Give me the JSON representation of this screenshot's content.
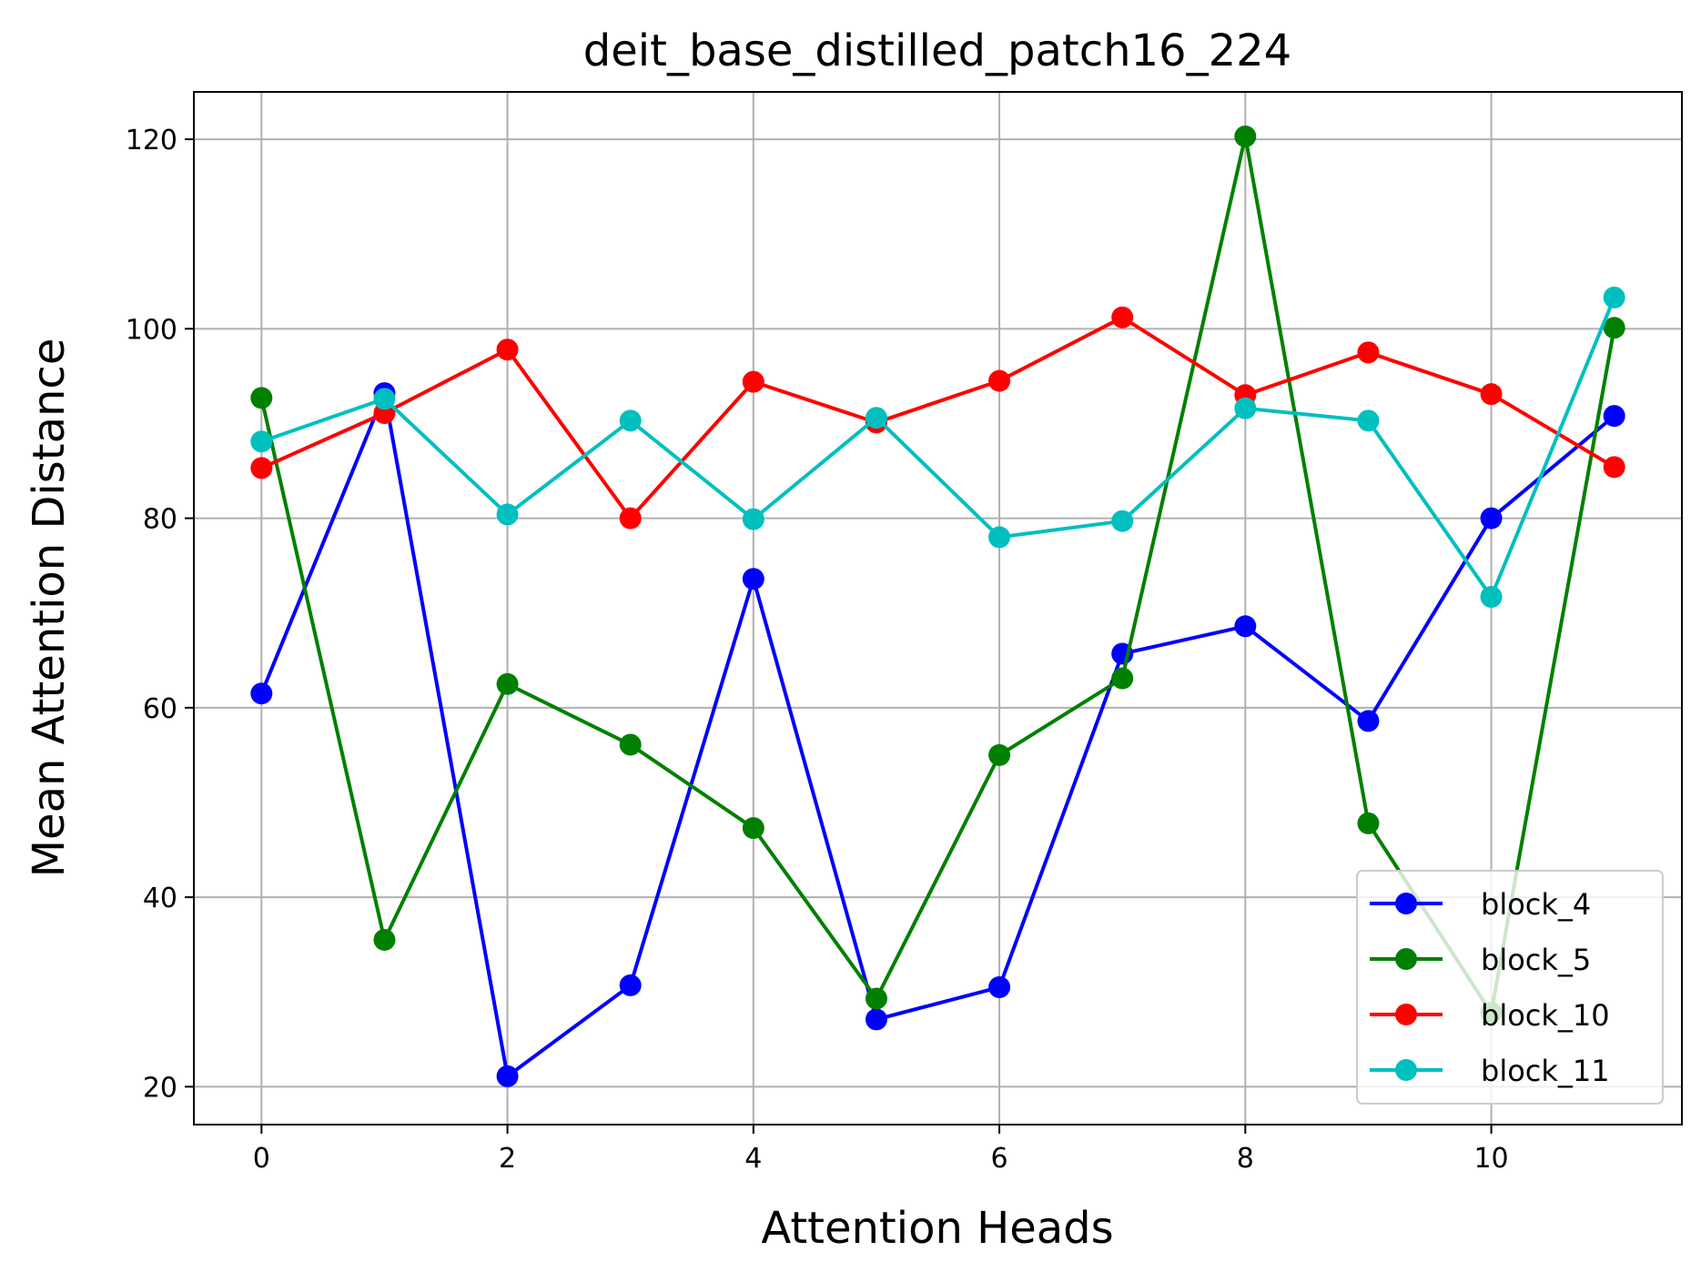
{
  "chart_data": {
    "type": "line",
    "title": "deit_base_distilled_patch16_224",
    "xlabel": "Attention Heads",
    "ylabel": "Mean Attention Distance",
    "x": [
      0,
      1,
      2,
      3,
      4,
      5,
      6,
      7,
      8,
      9,
      10,
      11
    ],
    "xticks": [
      "0",
      "2",
      "4",
      "6",
      "8",
      "10"
    ],
    "yticks": [
      "20",
      "40",
      "60",
      "80",
      "100",
      "120"
    ],
    "xlim": [
      -0.55,
      11.55
    ],
    "ylim": [
      16,
      125
    ],
    "grid": true,
    "legend_position": "lower-right",
    "series": [
      {
        "name": "block_4",
        "color": "#0000ff",
        "values": [
          61.5,
          93.2,
          21.1,
          30.7,
          73.6,
          27.1,
          30.5,
          65.7,
          68.6,
          58.6,
          80.0,
          90.8
        ]
      },
      {
        "name": "block_5",
        "color": "#008000",
        "values": [
          92.7,
          35.5,
          62.5,
          56.1,
          47.3,
          29.3,
          55.0,
          63.1,
          120.3,
          47.8,
          27.8,
          100.1
        ]
      },
      {
        "name": "block_10",
        "color": "#ff0000",
        "values": [
          85.3,
          91.1,
          97.8,
          80.0,
          94.4,
          90.1,
          94.5,
          101.2,
          93.0,
          97.5,
          93.1,
          85.4
        ]
      },
      {
        "name": "block_11",
        "color": "#00bfbf",
        "values": [
          88.1,
          92.6,
          80.4,
          90.3,
          79.9,
          90.6,
          78.0,
          79.7,
          91.6,
          90.3,
          71.7,
          103.3
        ]
      }
    ]
  }
}
